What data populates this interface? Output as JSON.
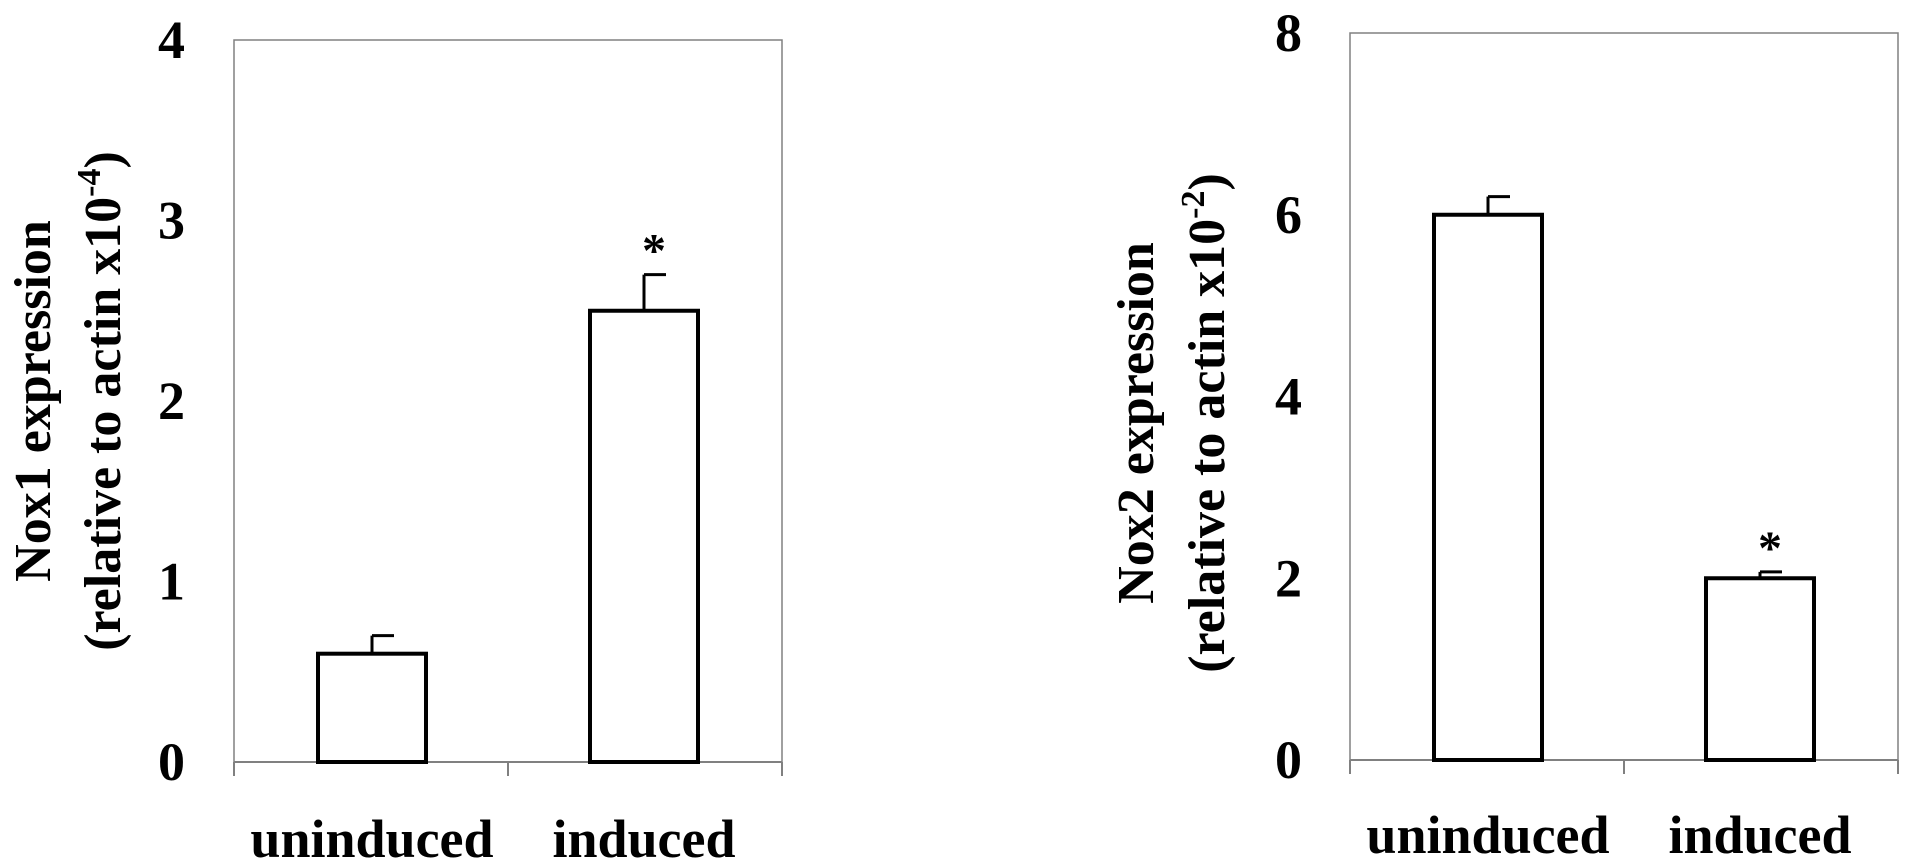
{
  "chart_data": [
    {
      "type": "bar",
      "categories": [
        "uninduced",
        "induced"
      ],
      "values": [
        0.6,
        2.5
      ],
      "errors": [
        0.1,
        0.2
      ],
      "significance": [
        "",
        "*"
      ],
      "ylabel_line1": "Nox1 expression",
      "ylabel_line2": "(relative to actin x10",
      "ylabel_exp": "-4",
      "ylabel_close": ")",
      "ylim": [
        0,
        4
      ],
      "yticks": [
        0,
        1,
        2,
        3,
        4
      ],
      "ytick_labels": [
        "0",
        "1",
        "2",
        "3",
        "4"
      ],
      "grid": false
    },
    {
      "type": "bar",
      "categories": [
        "uninduced",
        "induced"
      ],
      "values": [
        6.0,
        2.0
      ],
      "errors": [
        0.2,
        0.07
      ],
      "significance": [
        "",
        "*"
      ],
      "ylabel_line1": "Nox2 expression",
      "ylabel_line2": "(relative to actin x10",
      "ylabel_exp": "-2",
      "ylabel_close": ")",
      "ylim": [
        0,
        8
      ],
      "yticks": [
        0,
        2,
        4,
        6,
        8
      ],
      "ytick_labels": [
        "0",
        "2",
        "4",
        "6",
        "8"
      ],
      "grid": false
    }
  ]
}
